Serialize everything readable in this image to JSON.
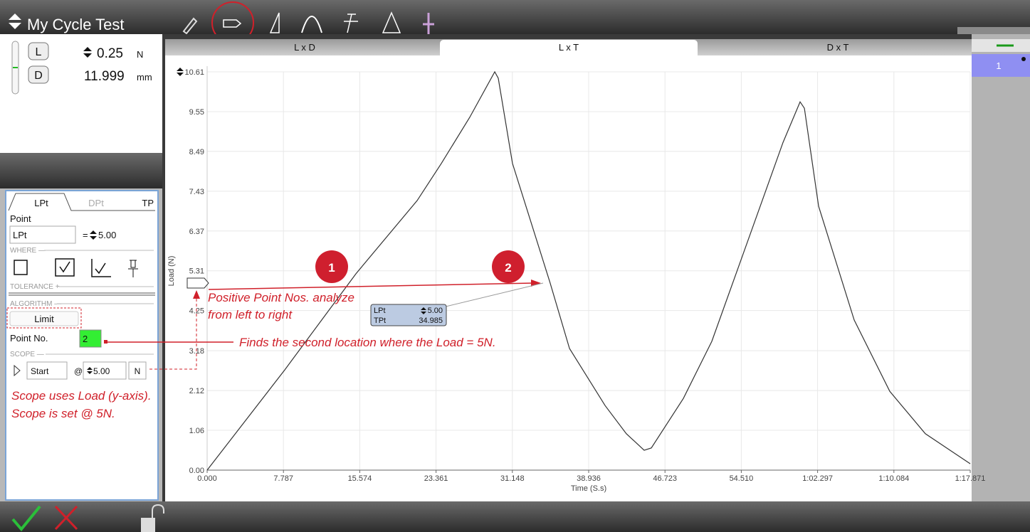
{
  "toolbar": {
    "title": "My Cycle Test"
  },
  "readouts": [
    {
      "key": "L",
      "value": "0.25",
      "unit": "N"
    },
    {
      "key": "D",
      "value": "11.999",
      "unit": "mm"
    }
  ],
  "panel": {
    "tabs": [
      "LPt",
      "DPt",
      "TP"
    ],
    "point_label": "Point",
    "point_name": "LPt",
    "equals": "=",
    "point_value": "5.00",
    "where": "WHERE —",
    "tolerance": "TOLERANCE +",
    "algorithm": "ALGORITHM —",
    "algorithm_button": "Limit",
    "point_no_label": "Point No.",
    "point_no": "2",
    "scope": "SCOPE —",
    "scope_start": "Start",
    "scope_at": "@",
    "scope_value": "5.00",
    "scope_unit": "N"
  },
  "chart_tabs": [
    "L x D",
    "L x T",
    "D x T"
  ],
  "side_list": [
    "1"
  ],
  "annotations": {
    "markers": [
      "1",
      "2"
    ],
    "direction_note": [
      "Positive Point Nos. analyze",
      "from left to right"
    ],
    "finds_note": "Finds the second location where the Load = 5N.",
    "scope_note": [
      "Scope uses Load (y-axis).",
      "Scope is set @ 5N."
    ],
    "point_box": [
      [
        "LPt",
        "5.00"
      ],
      [
        "TPt",
        "34.985"
      ]
    ]
  },
  "chart_data": {
    "type": "line",
    "x_label": "Time (S.s)",
    "y_label": "Load (N)",
    "color": "#333333",
    "x": [
      0,
      7.918,
      15.18,
      21.43,
      23.9,
      26.8,
      29.35,
      29.71,
      31.16,
      34.985,
      36.98,
      40.61,
      42.78,
      44.6,
      45.33,
      48.6,
      51.5,
      55.14,
      58.77,
      60.51,
      60.95,
      62.4,
      66.03,
      69.66,
      73.29,
      77.87
    ],
    "values": [
      0,
      2.67,
      5.23,
      7.18,
      8.17,
      9.4,
      10.61,
      10.44,
      8.17,
      5.0,
      3.24,
      1.72,
      0.97,
      0.53,
      0.59,
      1.91,
      3.43,
      6.08,
      8.73,
      9.81,
      9.64,
      7.03,
      4.0,
      2.1,
      0.97,
      0.17
    ],
    "xlim": [
      0,
      77.871
    ],
    "ylim": [
      0,
      10.61
    ],
    "xticks": [
      {
        "value": 0,
        "label": "0.000"
      },
      7.787,
      15.574,
      23.361,
      31.148,
      38.936,
      46.723,
      {
        "value": 54.51,
        "label": "54.510"
      },
      {
        "value": 62.297,
        "label": "1:02.297"
      },
      {
        "value": 70.084,
        "label": "1:10.084"
      },
      {
        "value": 77.871,
        "label": "1:17.871"
      }
    ],
    "yticks": [
      {
        "value": 0,
        "label": "0.00"
      },
      1.06,
      2.12,
      3.18,
      4.25,
      5.31,
      6.37,
      7.43,
      8.49,
      9.55,
      10.61
    ],
    "grid": true
  }
}
